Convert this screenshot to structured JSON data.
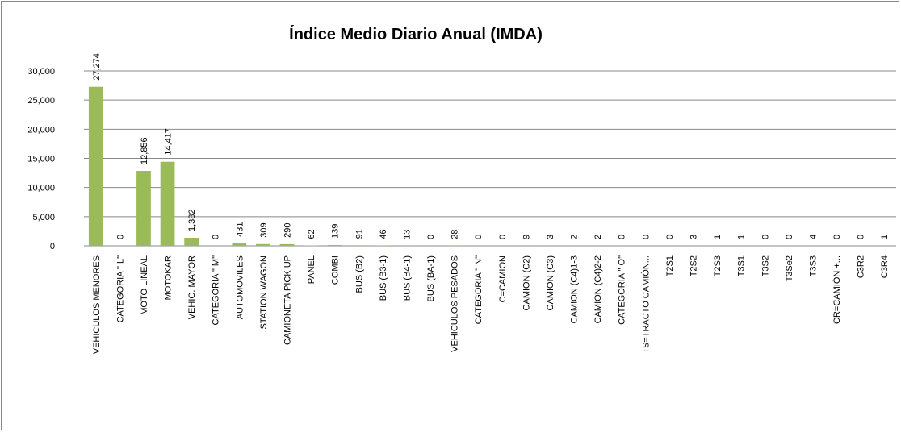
{
  "chart_data": {
    "type": "bar",
    "title": "Índice Medio Diario Anual (IMDA)",
    "categories": [
      "VEHICULOS MENORES",
      "CATEGORIA  \" L\"",
      "MOTO LINEAL",
      "MOTOKAR",
      "VEHIC. MAYOR",
      "CATEGORIA  \" M\"",
      "AUTOMOVILES",
      "STATION WAGON",
      "CAMIONETA PICK UP",
      "PANEL",
      "COMBI",
      "BUS  (B2)",
      "BUS  (B3-1)",
      "BUS  (B4-1)",
      "BUS  (BA-1)",
      "VEHICULOS PESADOS",
      "CATEGORIA  \" N\"",
      "C=CAMION",
      "CAMION (C2)",
      "CAMION (C3)",
      "CAMION (C4)1-3",
      "CAMION (C4)2-2",
      "CATEGORIA  \" O\"",
      "TS=TRACTO CAMIÓN...",
      "T2S1",
      "T2S2",
      "T2S3",
      "T3S1",
      "T3S2",
      "T3Se2",
      "T3S3",
      "CR=CAMIÓN +...",
      "C3R2",
      "C3R4"
    ],
    "values": [
      27274,
      0,
      12856,
      14417,
      1382,
      0,
      431,
      309,
      290,
      62,
      139,
      91,
      46,
      13,
      0,
      28,
      0,
      0,
      9,
      3,
      2,
      2,
      0,
      0,
      0,
      3,
      1,
      1,
      0,
      0,
      4,
      0,
      0,
      1
    ],
    "value_labels": [
      "27,274",
      "0",
      "12,856",
      "14,417",
      "1,382",
      "0",
      "431",
      "309",
      "290",
      "62",
      "139",
      "91",
      "46",
      "13",
      "0",
      "28",
      "0",
      "0",
      "9",
      "3",
      "2",
      "2",
      "0",
      "0",
      "0",
      "3",
      "1",
      "1",
      "0",
      "0",
      "4",
      "0",
      "0",
      "1"
    ],
    "color": "#9bbb59",
    "ylim": [
      0,
      30000
    ],
    "yticks": [
      0,
      {
        "value": 5000,
        "label": "5,000"
      },
      {
        "value": 10000,
        "label": "10,000"
      },
      {
        "value": 15000,
        "label": "15,000"
      },
      {
        "value": 20000,
        "label": "20,000"
      },
      {
        "value": 25000,
        "label": "25,000"
      },
      {
        "value": 30000,
        "label": "30,000"
      }
    ],
    "grid": true
  }
}
